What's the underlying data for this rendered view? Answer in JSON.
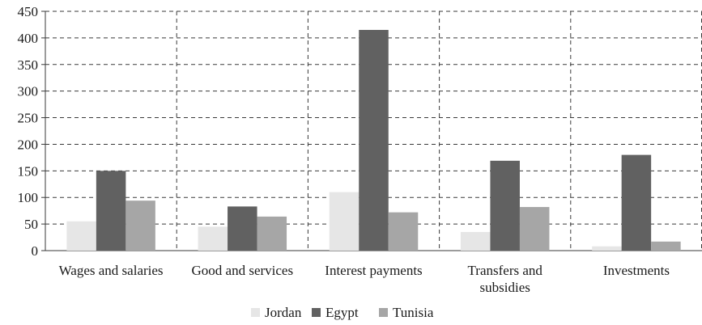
{
  "chart_data": {
    "type": "bar",
    "title": "",
    "xlabel": "",
    "ylabel": "",
    "ylim": [
      0,
      450
    ],
    "yticks": [
      0,
      50,
      100,
      150,
      200,
      250,
      300,
      350,
      400,
      450
    ],
    "grid": true,
    "legend_position": "bottom",
    "categories": [
      [
        "Wages and salaries"
      ],
      [
        "Good and services"
      ],
      [
        "Interest payments"
      ],
      [
        "Transfers and",
        "subsidies"
      ],
      [
        "Investments"
      ]
    ],
    "series": [
      {
        "name": "Jordan",
        "color": "#e6e6e6",
        "values": [
          55,
          45,
          110,
          35,
          8
        ]
      },
      {
        "name": "Egypt",
        "color": "#616161",
        "values": [
          150,
          83,
          415,
          169,
          180
        ]
      },
      {
        "name": "Tunisia",
        "color": "#a6a6a6",
        "values": [
          94,
          64,
          72,
          82,
          17
        ]
      }
    ]
  }
}
